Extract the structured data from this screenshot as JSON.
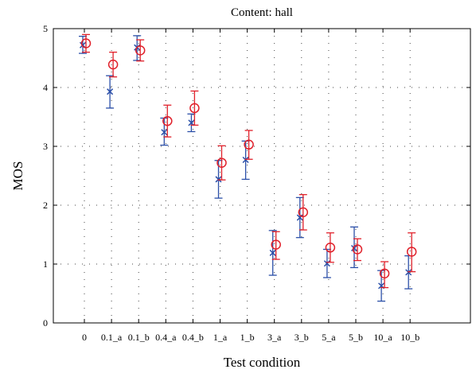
{
  "chart_data": {
    "type": "scatter",
    "title": "Content: hall",
    "xlabel": "Test condition",
    "ylabel": "MOS",
    "categories": [
      "0",
      "0.1_a",
      "0.1_b",
      "0.4_a",
      "0.4_b",
      "1_a",
      "1_b",
      "3_a",
      "3_b",
      "5_a",
      "5_b",
      "10_a",
      "10_b"
    ],
    "ylim": [
      0,
      5
    ],
    "yticks": [
      0,
      1,
      2,
      3,
      4,
      5
    ],
    "grid": true,
    "error_bars": true,
    "series": [
      {
        "marker": "x",
        "color": "#2b4fa8",
        "values": [
          4.72,
          3.93,
          4.68,
          3.24,
          3.4,
          2.44,
          2.77,
          1.19,
          1.79,
          1.01,
          1.27,
          0.63,
          0.86
        ],
        "lower": [
          4.58,
          3.65,
          4.46,
          3.02,
          3.25,
          2.12,
          2.44,
          0.81,
          1.45,
          0.77,
          0.94,
          0.37,
          0.58
        ],
        "upper": [
          4.87,
          4.2,
          4.88,
          3.48,
          3.55,
          2.76,
          3.09,
          1.57,
          2.13,
          1.25,
          1.63,
          0.89,
          1.14
        ]
      },
      {
        "marker": "o",
        "color": "#e0202a",
        "values": [
          4.75,
          4.39,
          4.63,
          3.43,
          3.65,
          2.72,
          3.03,
          1.33,
          1.88,
          1.28,
          1.25,
          0.84,
          1.21
        ],
        "lower": [
          4.6,
          4.18,
          4.45,
          3.16,
          3.36,
          2.43,
          2.78,
          1.08,
          1.58,
          1.03,
          1.06,
          0.6,
          0.87
        ],
        "upper": [
          4.9,
          4.6,
          4.81,
          3.7,
          3.94,
          3.01,
          3.27,
          1.55,
          2.18,
          1.53,
          1.43,
          1.04,
          1.53
        ]
      }
    ]
  }
}
